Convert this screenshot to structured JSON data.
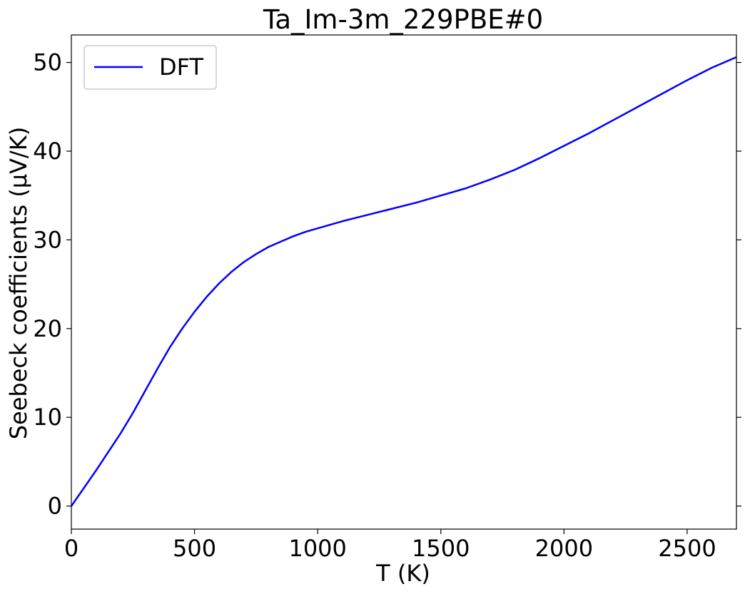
{
  "chart_data": {
    "type": "line",
    "title": "Ta_Im-3m_229PBE#0",
    "xlabel": "T (K)",
    "ylabel": "Seebeck coefficients (µV/K)",
    "xlim": [
      0,
      2700
    ],
    "ylim": [
      -2.6,
      53.1
    ],
    "xticks": [
      0,
      500,
      1000,
      1500,
      2000,
      2500
    ],
    "yticks": [
      0,
      10,
      20,
      30,
      40,
      50
    ],
    "grid": false,
    "legend_position": "upper left",
    "series": [
      {
        "name": "DFT",
        "color": "#0000ff",
        "x": [
          0,
          50,
          100,
          150,
          200,
          250,
          300,
          350,
          400,
          450,
          500,
          550,
          600,
          650,
          700,
          750,
          800,
          850,
          900,
          950,
          1000,
          1100,
          1200,
          1300,
          1400,
          1500,
          1600,
          1700,
          1800,
          1900,
          2000,
          2100,
          2200,
          2300,
          2400,
          2500,
          2600,
          2700
        ],
        "y": [
          0,
          2.0,
          4.0,
          6.1,
          8.2,
          10.5,
          13.0,
          15.5,
          17.9,
          20.0,
          21.9,
          23.6,
          25.1,
          26.4,
          27.5,
          28.4,
          29.2,
          29.8,
          30.4,
          30.9,
          31.3,
          32.1,
          32.8,
          33.5,
          34.2,
          35.0,
          35.8,
          36.8,
          37.9,
          39.2,
          40.6,
          42.0,
          43.5,
          45.0,
          46.5,
          48.0,
          49.4,
          50.6
        ]
      }
    ]
  }
}
